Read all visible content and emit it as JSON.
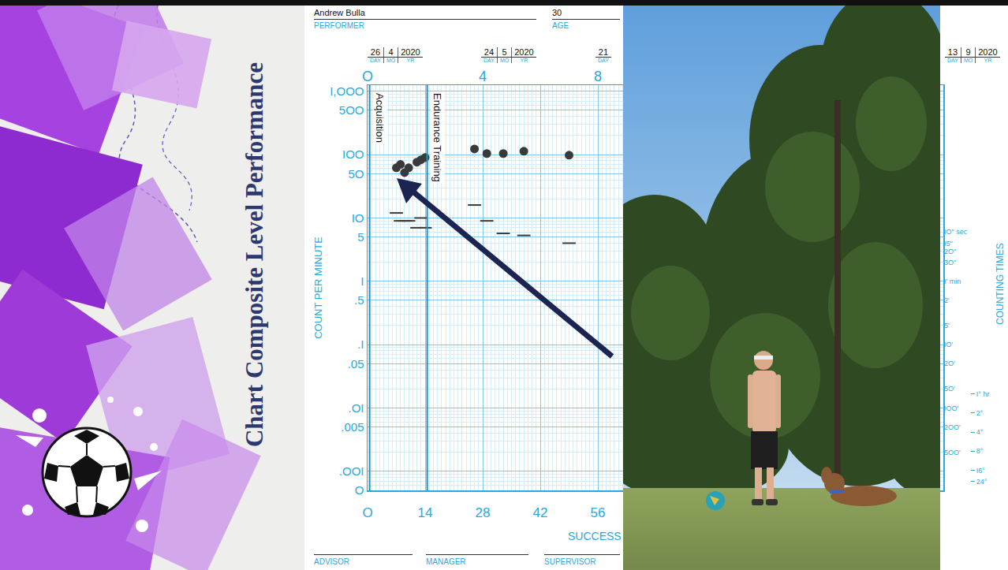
{
  "slide": {
    "title": "Chart Composite Level Performance"
  },
  "header": {
    "performer": "Andrew Bulla",
    "performer_label": "PERFORMER",
    "age": 30,
    "age_label": "AGE",
    "date_parts": [
      "DAY",
      "MO",
      "YR"
    ],
    "dates": [
      {
        "day": 26,
        "month": 4,
        "year": 2020
      },
      {
        "day": 24,
        "month": 5,
        "year": 2020
      },
      {
        "day": 21
      },
      {
        "day": 13,
        "month": 9,
        "year": 2020
      }
    ]
  },
  "footer": {
    "labels": [
      "ADVISOR",
      "MANAGER",
      "SUPERVISOR"
    ]
  },
  "chart_data": {
    "type": "scatter",
    "xlabel": "SUCCESS",
    "ylabel": "COUNT PER MINUTE",
    "y2label": "COUNTING TIMES",
    "log": "y",
    "grid": true,
    "xlim": [
      0,
      140
    ],
    "xticks": [
      {
        "value": 0,
        "label": "O"
      },
      14,
      28,
      42,
      56
    ],
    "x2lim": [
      0,
      20
    ],
    "x2ticks": [
      {
        "value": 0,
        "label": "O"
      },
      4,
      8
    ],
    "ylim": [
      0.0005,
      1250
    ],
    "yticks": [
      {
        "value": 0.0005,
        "label": "O"
      },
      {
        "value": 0.001,
        "label": ".OOI"
      },
      {
        "value": 0.005,
        "label": ".005"
      },
      {
        "value": 0.01,
        "label": ".OI"
      },
      {
        "value": 0.05,
        "label": ".05"
      },
      {
        "value": 0.1,
        "label": ".I"
      },
      {
        "value": 0.5,
        "label": ".5"
      },
      {
        "value": 1,
        "label": "I"
      },
      5,
      {
        "value": 10,
        "label": "IO"
      },
      {
        "value": 50,
        "label": "5O"
      },
      {
        "value": 100,
        "label": "IOO"
      },
      {
        "value": 500,
        "label": "5OO"
      },
      {
        "value": 1000,
        "label": "I,OOO"
      }
    ],
    "y2lim": [
      2000,
      0.0008
    ],
    "y2ticks": [
      {
        "value": 0.1667,
        "label": "IO\" sec"
      },
      {
        "value": 0.25,
        "label": "I5\""
      },
      {
        "value": 0.3333,
        "label": "2O\""
      },
      {
        "value": 0.5,
        "label": "3O\""
      },
      {
        "value": 1,
        "label": "I' min"
      },
      {
        "value": 2,
        "label": "2'"
      },
      {
        "value": 5,
        "label": "5'"
      },
      {
        "value": 10,
        "label": "IO'"
      },
      {
        "value": 20,
        "label": "2O'"
      },
      {
        "value": 50,
        "label": "5O'"
      },
      {
        "value": 100,
        "label": "IOO'"
      },
      {
        "value": 200,
        "label": "2OO'"
      },
      {
        "value": 500,
        "label": "5OO'"
      }
    ],
    "y3lim": [
      2000,
      0.0008
    ],
    "y3ticks": [
      {
        "value": 60,
        "label": "I° hr"
      },
      {
        "value": 120,
        "label": "2°"
      },
      {
        "value": 240,
        "label": "4°"
      },
      {
        "value": 480,
        "label": "8°"
      },
      {
        "value": 960,
        "label": "I6°"
      },
      {
        "value": 1440,
        "label": "24°"
      }
    ],
    "annotations": [
      {
        "x": 0.5,
        "text": "Acquisition"
      },
      {
        "x": 14.5,
        "text": "Endurance Training"
      }
    ],
    "series": [
      {
        "color": "#3a3a3a",
        "marker": "circle",
        "x": [
          7,
          8,
          9,
          10,
          12,
          13,
          14,
          26,
          29,
          33,
          38,
          49
        ],
        "values": [
          62,
          70,
          52,
          62,
          76,
          83,
          90,
          123,
          104,
          104,
          113,
          98
        ]
      },
      {
        "color": "#3a3a3a",
        "marker": "dash",
        "x": [
          7,
          8,
          9,
          10,
          12,
          13,
          14,
          26,
          29,
          33,
          38,
          49
        ],
        "values": [
          12,
          9,
          9,
          9,
          7,
          10,
          7,
          16,
          9,
          5.7,
          5.3,
          4
        ]
      }
    ]
  }
}
